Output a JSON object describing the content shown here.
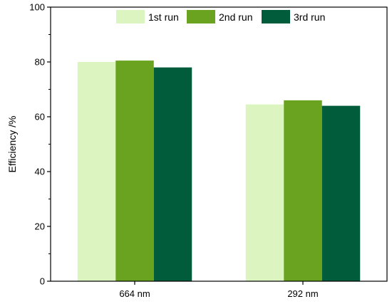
{
  "chart_data": {
    "type": "bar",
    "categories": [
      "664 nm",
      "292 nm"
    ],
    "series": [
      {
        "name": "1st run",
        "values": [
          80.0,
          64.5
        ],
        "color": "#dcf5c0"
      },
      {
        "name": "2nd run",
        "values": [
          80.5,
          66.0
        ],
        "color": "#6aa31f"
      },
      {
        "name": "3rd run",
        "values": [
          78.0,
          64.0
        ],
        "color": "#005c3a"
      }
    ],
    "title": "",
    "xlabel": "",
    "ylabel": "Efficiency /%",
    "ylim": [
      0,
      100
    ],
    "yticks": [
      0,
      20,
      40,
      60,
      80,
      100
    ],
    "grid": false,
    "legend_position": "top-right"
  }
}
